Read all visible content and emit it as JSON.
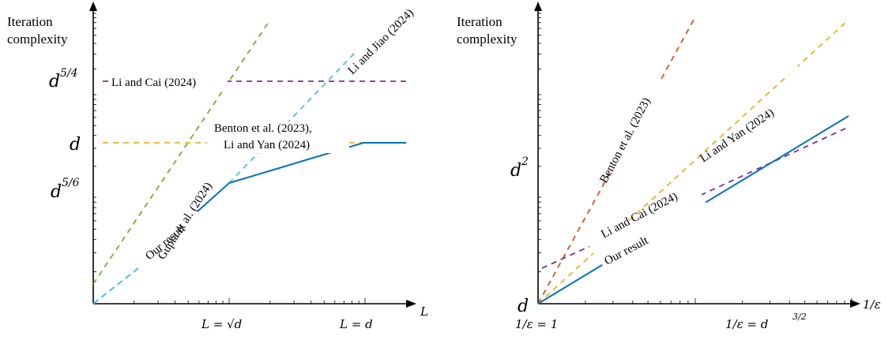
{
  "chart_data": [
    {
      "type": "line",
      "title": "",
      "ylabel": "Iteration complexity",
      "xlabel": "L",
      "x_ticks": [
        "L = √d",
        "L = d"
      ],
      "y_ticks": [
        "d^{5/4}",
        "d",
        "d^{5/6}"
      ],
      "series": [
        {
          "name": "Li and Cai (2024)",
          "color": "#7e2f8e",
          "style": "dashed",
          "points": [
            [
              0,
              1.25
            ],
            [
              1,
              1.25
            ]
          ]
        },
        {
          "name": "Benton et al. (2023), Li and Yan (2024)",
          "color": "#edb120",
          "style": "dashed",
          "points": [
            [
              0,
              1.0
            ],
            [
              1,
              1.0
            ]
          ]
        },
        {
          "name": "Gupta et al. (2024)",
          "color": "#77ac30",
          "style": "dashed",
          "points": [
            [
              0,
              0.06
            ],
            [
              0.5,
              1.5
            ]
          ]
        },
        {
          "name": "Li and Jiao (2024)",
          "color": "#4dbeee",
          "style": "dashed",
          "points": [
            [
              0.5,
              0.833
            ],
            [
              1,
              1.375
            ]
          ]
        },
        {
          "name": "Our result",
          "color": "#0072bd",
          "style": "solid",
          "points": [
            [
              0,
              0
            ],
            [
              0.5,
              0.833
            ],
            [
              1,
              1.0
            ]
          ]
        }
      ]
    },
    {
      "type": "line",
      "title": "",
      "ylabel": "Iteration complexity",
      "xlabel": "1/ε",
      "x_ticks": [
        "1/ε = 1",
        "1/ε = d^{3/2}"
      ],
      "y_ticks": [
        "d^2",
        "d"
      ],
      "series": [
        {
          "name": "Benton et al. (2023)",
          "color": "#d95319",
          "style": "dashed",
          "slope": 2.0
        },
        {
          "name": "Li and Yan (2024)",
          "color": "#edb120",
          "style": "dashed",
          "slope": 1.5
        },
        {
          "name": "Li and Cai (2024)",
          "color": "#7e2f8e",
          "style": "dashed",
          "slope": 0.667
        },
        {
          "name": "Our result",
          "color": "#0072bd",
          "style": "solid",
          "slope": 1.0
        }
      ]
    }
  ],
  "labels": {
    "left_ylabel_1": "Iteration",
    "left_ylabel_2": "complexity",
    "left_x_axis": "L",
    "left_xtick_1": "L = √d",
    "left_xtick_2": "L = d",
    "left_ytick_d54": "d",
    "left_ytick_d54_exp": "5/4",
    "left_ytick_d": "d",
    "left_ytick_d56": "d",
    "left_ytick_d56_exp": "5/6",
    "left_licai": "Li and Cai (2024)",
    "left_benton": "Benton et al. (2023),",
    "left_liyan": "Li and Yan (2024)",
    "left_gupta": "Gupta et al. (2024)",
    "left_lijiao": "Li and Jiao (2024)",
    "left_ours": "Our result",
    "right_ylabel_1": "Iteration",
    "right_ylabel_2": "complexity",
    "right_x_axis": "1/ε",
    "right_xtick_1": "1/ε = 1",
    "right_xtick_2": "1/ε = d",
    "right_xtick_2_exp": "3/2",
    "right_ytick_d2": "d",
    "right_ytick_d2_exp": "2",
    "right_ytick_d": "d",
    "right_benton": "Benton et al. (2023)",
    "right_liyan": "Li and Yan (2024)",
    "right_licai": "Li and Cai (2024)",
    "right_ours": "Our result"
  }
}
